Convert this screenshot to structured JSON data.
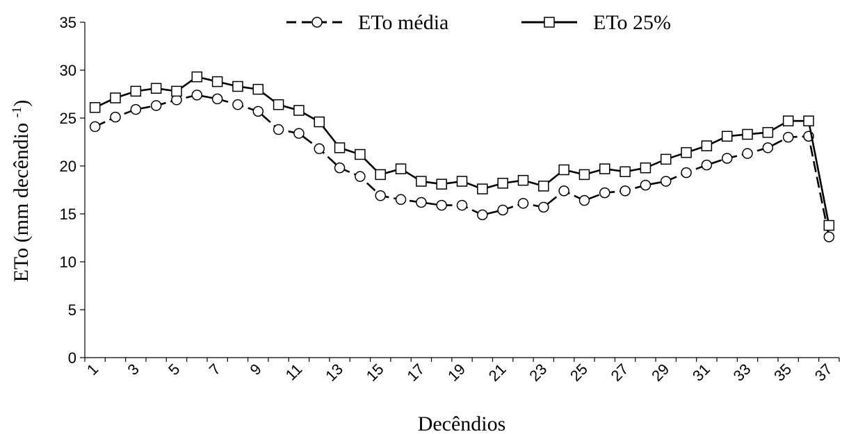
{
  "chart_data": {
    "type": "line",
    "xlabel": "Decêndios",
    "ylabel_main": "ETo (mm decêndio ",
    "ylabel_sup": "-1",
    "ylabel_close": ")",
    "ylim": [
      0,
      35
    ],
    "yticks": [
      "0",
      "5",
      "10",
      "15",
      "20",
      "25",
      "30",
      "35"
    ],
    "x": [
      1,
      2,
      3,
      4,
      5,
      6,
      7,
      8,
      9,
      10,
      11,
      12,
      13,
      14,
      15,
      16,
      17,
      18,
      19,
      20,
      21,
      22,
      23,
      24,
      25,
      26,
      27,
      28,
      29,
      30,
      31,
      32,
      33,
      34,
      35,
      36,
      37
    ],
    "xticks": [
      "1",
      "3",
      "5",
      "7",
      "9",
      "11",
      "13",
      "15",
      "17",
      "19",
      "21",
      "23",
      "25",
      "27",
      "29",
      "31",
      "33",
      "35",
      "37"
    ],
    "grid": false,
    "legend_position": "top-center",
    "series": [
      {
        "name": "ETo média",
        "marker": "circle",
        "line_style": "dashed",
        "color": "#000000",
        "values": [
          24.1,
          25.1,
          25.9,
          26.3,
          26.9,
          27.4,
          27.0,
          26.4,
          25.7,
          23.8,
          23.4,
          21.8,
          19.8,
          18.9,
          16.9,
          16.5,
          16.2,
          15.9,
          15.9,
          14.9,
          15.4,
          16.1,
          15.7,
          17.4,
          16.4,
          17.2,
          17.4,
          18.0,
          18.4,
          19.3,
          20.1,
          20.8,
          21.3,
          21.9,
          23.0,
          23.1,
          12.6
        ]
      },
      {
        "name": "ETo 25%",
        "marker": "square",
        "line_style": "solid",
        "color": "#000000",
        "values": [
          26.1,
          27.1,
          27.8,
          28.1,
          27.8,
          29.3,
          28.8,
          28.3,
          28.0,
          26.4,
          25.8,
          24.6,
          21.9,
          21.2,
          19.1,
          19.7,
          18.4,
          18.1,
          18.4,
          17.6,
          18.2,
          18.5,
          17.9,
          19.6,
          19.1,
          19.7,
          19.4,
          19.8,
          20.7,
          21.4,
          22.1,
          23.1,
          23.3,
          23.5,
          24.7,
          24.7,
          13.8
        ]
      }
    ]
  }
}
